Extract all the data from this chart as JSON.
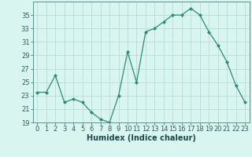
{
  "x": [
    0,
    1,
    2,
    3,
    4,
    5,
    6,
    7,
    8,
    9,
    10,
    11,
    12,
    13,
    14,
    15,
    16,
    17,
    18,
    19,
    20,
    21,
    22,
    23
  ],
  "y": [
    23.5,
    23.5,
    26.0,
    22.0,
    22.5,
    22.0,
    20.5,
    19.5,
    19.0,
    23.0,
    29.5,
    25.0,
    32.5,
    33.0,
    34.0,
    35.0,
    35.0,
    36.0,
    35.0,
    32.5,
    30.5,
    28.0,
    24.5,
    22.0
  ],
  "line_color": "#2e8b7a",
  "marker": "D",
  "marker_size": 2.0,
  "bg_color": "#d8f5f0",
  "grid_color": "#b8ddd8",
  "xlabel": "Humidex (Indice chaleur)",
  "ylim": [
    19,
    37
  ],
  "yticks": [
    19,
    21,
    23,
    25,
    27,
    29,
    31,
    33,
    35
  ],
  "xticks": [
    0,
    1,
    2,
    3,
    4,
    5,
    6,
    7,
    8,
    9,
    10,
    11,
    12,
    13,
    14,
    15,
    16,
    17,
    18,
    19,
    20,
    21,
    22,
    23
  ],
  "xlabel_fontsize": 7.0,
  "tick_fontsize": 6.0,
  "xlim": [
    -0.5,
    23.5
  ]
}
